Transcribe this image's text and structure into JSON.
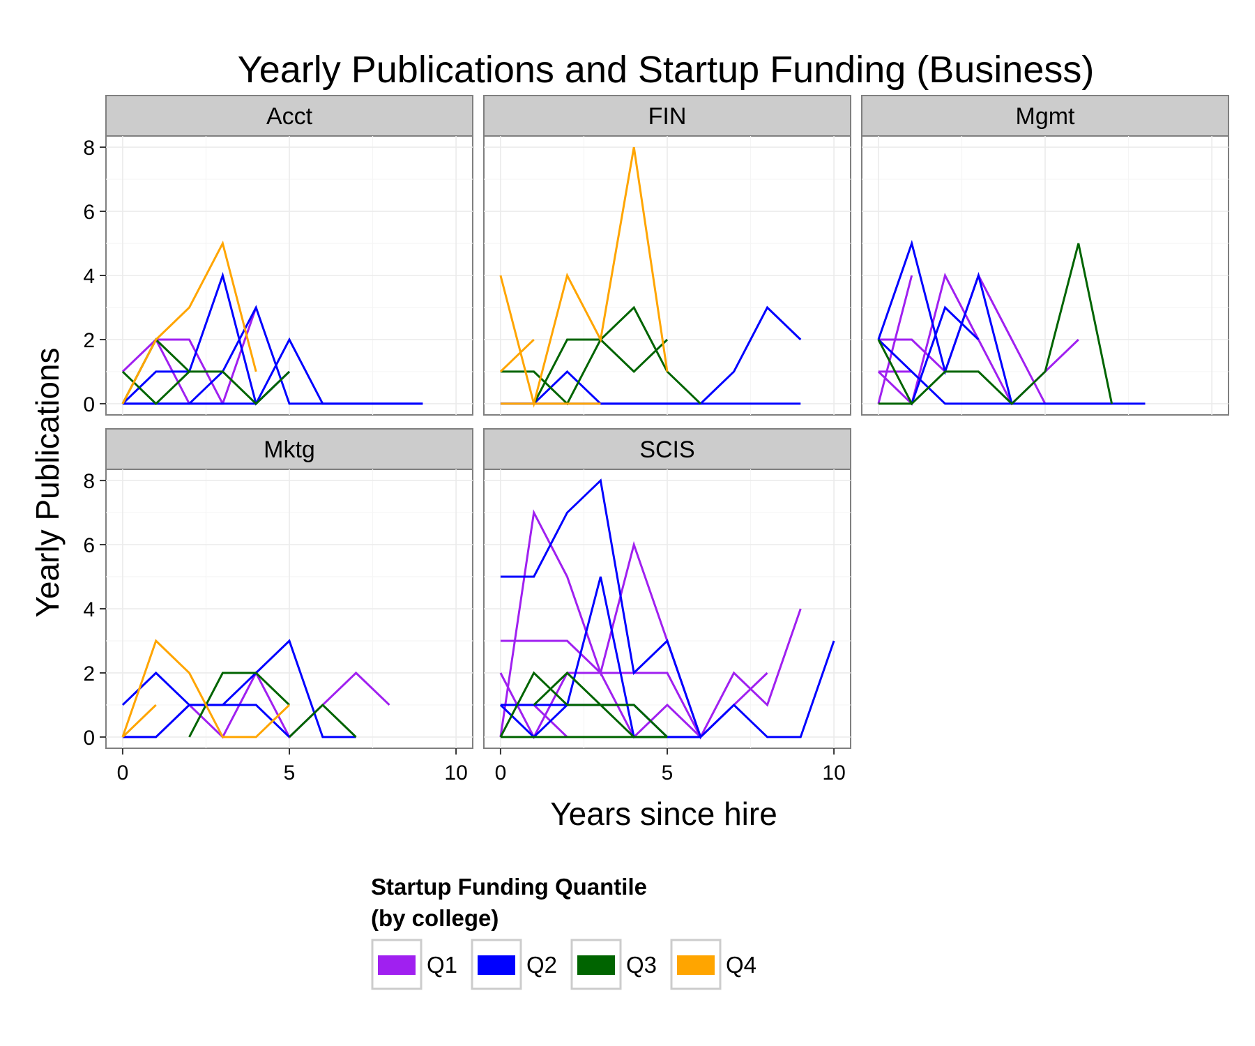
{
  "chart_data": {
    "type": "line",
    "title": "Yearly Publications and Startup Funding (Business)",
    "xlabel": "Years since hire",
    "ylabel": "Yearly Publications",
    "xlim": [
      -0.5,
      10.5
    ],
    "ylim": [
      -0.35,
      8.35
    ],
    "x_ticks": [
      "0",
      "5",
      "10"
    ],
    "y_ticks": [
      "0",
      "2",
      "4",
      "6",
      "8"
    ],
    "grid": true,
    "legend": {
      "title_line1": "Startup Funding Quantile",
      "title_line2": "(by college)",
      "placement": "bottom",
      "entries": [
        {
          "label": "Q1",
          "color": "#a020f0"
        },
        {
          "label": "Q2",
          "color": "#0000ff"
        },
        {
          "label": "Q3",
          "color": "#006400"
        },
        {
          "label": "Q4",
          "color": "#ffa500"
        }
      ]
    },
    "panels": [
      {
        "name": "Acct",
        "lines": [
          {
            "q": "Q1",
            "x": [
              0,
              1,
              2,
              3,
              4
            ],
            "y": [
              1,
              2,
              0,
              0,
              3
            ]
          },
          {
            "q": "Q1",
            "x": [
              1,
              2,
              3
            ],
            "y": [
              2,
              2,
              0
            ]
          },
          {
            "q": "Q2",
            "x": [
              0,
              1,
              2,
              3,
              4,
              5
            ],
            "y": [
              0,
              1,
              1,
              4,
              0,
              1
            ]
          },
          {
            "q": "Q2",
            "x": [
              0,
              1,
              2,
              3,
              4,
              5,
              6,
              7,
              8,
              9
            ],
            "y": [
              0,
              0,
              0,
              1,
              3,
              0,
              0,
              0,
              0,
              0
            ]
          },
          {
            "q": "Q2",
            "x": [
              0,
              1,
              2,
              3,
              4,
              5,
              6,
              7,
              8,
              9
            ],
            "y": [
              0,
              0,
              0,
              0,
              0,
              2,
              0,
              0,
              0,
              0
            ]
          },
          {
            "q": "Q3",
            "x": [
              0,
              1,
              2,
              3,
              4,
              5
            ],
            "y": [
              1,
              0,
              1,
              1,
              0,
              1
            ]
          },
          {
            "q": "Q3",
            "x": [
              0,
              1,
              2
            ],
            "y": [
              0,
              2,
              1
            ]
          },
          {
            "q": "Q4",
            "x": [
              0,
              1,
              2,
              3,
              4
            ],
            "y": [
              0,
              2,
              3,
              5,
              1
            ]
          }
        ]
      },
      {
        "name": "FIN",
        "lines": [
          {
            "q": "Q2",
            "x": [
              0,
              1,
              2,
              3,
              4,
              5,
              6,
              7,
              8,
              9
            ],
            "y": [
              0,
              0,
              1,
              0,
              0,
              0,
              0,
              1,
              3,
              2
            ]
          },
          {
            "q": "Q2",
            "x": [
              0,
              1,
              2,
              3,
              4,
              5,
              6,
              7,
              8,
              9
            ],
            "y": [
              0,
              0,
              0,
              0,
              0,
              0,
              0,
              0,
              0,
              0
            ]
          },
          {
            "q": "Q3",
            "x": [
              0,
              1,
              2,
              3,
              4,
              5,
              6
            ],
            "y": [
              1,
              1,
              0,
              2,
              3,
              1,
              0
            ]
          },
          {
            "q": "Q3",
            "x": [
              1,
              2,
              3,
              4,
              5
            ],
            "y": [
              0,
              2,
              2,
              1,
              2
            ]
          },
          {
            "q": "Q4",
            "x": [
              0,
              1,
              2,
              3,
              4,
              5
            ],
            "y": [
              4,
              0,
              4,
              2,
              8,
              1
            ]
          },
          {
            "q": "Q4",
            "x": [
              0,
              1,
              2,
              3
            ],
            "y": [
              0,
              0,
              0,
              0
            ]
          },
          {
            "q": "Q4",
            "x": [
              0,
              1
            ],
            "y": [
              1,
              2
            ]
          }
        ]
      },
      {
        "name": "Mgmt",
        "lines": [
          {
            "q": "Q1",
            "x": [
              0,
              1,
              2,
              3,
              4,
              5,
              6,
              7
            ],
            "y": [
              2,
              2,
              1,
              4,
              2,
              0,
              0,
              0
            ]
          },
          {
            "q": "Q1",
            "x": [
              0,
              1,
              2,
              3,
              4,
              5,
              6
            ],
            "y": [
              1,
              0,
              4,
              2,
              0,
              1,
              2
            ]
          },
          {
            "q": "Q1",
            "x": [
              0,
              1
            ],
            "y": [
              0,
              4
            ]
          },
          {
            "q": "Q1",
            "x": [
              0,
              1
            ],
            "y": [
              1,
              1
            ]
          },
          {
            "q": "Q2",
            "x": [
              0,
              1,
              2,
              3,
              4
            ],
            "y": [
              2,
              5,
              1,
              4,
              0
            ]
          },
          {
            "q": "Q2",
            "x": [
              0,
              1,
              2,
              3,
              4,
              5,
              6,
              7,
              8
            ],
            "y": [
              2,
              1,
              0,
              0,
              0,
              0,
              0,
              0,
              0
            ]
          },
          {
            "q": "Q2",
            "x": [
              1,
              2,
              3
            ],
            "y": [
              0,
              3,
              2
            ]
          },
          {
            "q": "Q3",
            "x": [
              0,
              1,
              2,
              3,
              4,
              5,
              6,
              7
            ],
            "y": [
              2,
              0,
              1,
              1,
              0,
              1,
              5,
              0
            ]
          },
          {
            "q": "Q3",
            "x": [
              0,
              1
            ],
            "y": [
              0,
              0
            ]
          }
        ]
      },
      {
        "name": "Mktg",
        "lines": [
          {
            "q": "Q1",
            "x": [
              0,
              1,
              2,
              3,
              4,
              5,
              6,
              7,
              8
            ],
            "y": [
              0,
              0,
              1,
              0,
              2,
              0,
              1,
              2,
              1
            ]
          },
          {
            "q": "Q2",
            "x": [
              0,
              1,
              2,
              3,
              4,
              5,
              6,
              7
            ],
            "y": [
              1,
              2,
              1,
              1,
              2,
              3,
              0,
              0
            ]
          },
          {
            "q": "Q2",
            "x": [
              0,
              1,
              2,
              3,
              4,
              5
            ],
            "y": [
              0,
              0,
              1,
              1,
              1,
              0
            ]
          },
          {
            "q": "Q3",
            "x": [
              2,
              3,
              4,
              5
            ],
            "y": [
              0,
              2,
              2,
              1
            ]
          },
          {
            "q": "Q3",
            "x": [
              5,
              6,
              7
            ],
            "y": [
              0,
              1,
              0
            ]
          },
          {
            "q": "Q4",
            "x": [
              0,
              1,
              2,
              3,
              4,
              5
            ],
            "y": [
              0,
              3,
              2,
              0,
              0,
              1
            ]
          },
          {
            "q": "Q4",
            "x": [
              0,
              1
            ],
            "y": [
              0,
              1
            ]
          }
        ]
      },
      {
        "name": "SCIS",
        "lines": [
          {
            "q": "Q1",
            "x": [
              0,
              1,
              2,
              3,
              4,
              5,
              6,
              7,
              8,
              9
            ],
            "y": [
              0,
              7,
              5,
              2,
              6,
              3,
              0,
              2,
              1,
              4
            ]
          },
          {
            "q": "Q1",
            "x": [
              0,
              1,
              2,
              3,
              4,
              5,
              6,
              7,
              8
            ],
            "y": [
              3,
              3,
              3,
              2,
              2,
              2,
              0,
              1,
              2
            ]
          },
          {
            "q": "Q1",
            "x": [
              0,
              1,
              2,
              3,
              4,
              5,
              6
            ],
            "y": [
              2,
              0,
              2,
              2,
              0,
              1,
              0
            ]
          },
          {
            "q": "Q1",
            "x": [
              0,
              1,
              2
            ],
            "y": [
              1,
              1,
              0
            ]
          },
          {
            "q": "Q2",
            "x": [
              0,
              1,
              2,
              3,
              4,
              5,
              6,
              7,
              8,
              9,
              10
            ],
            "y": [
              5,
              5,
              7,
              8,
              2,
              3,
              0,
              1,
              0,
              0,
              3
            ]
          },
          {
            "q": "Q2",
            "x": [
              0,
              1,
              2,
              3,
              4,
              5,
              6
            ],
            "y": [
              1,
              1,
              1,
              5,
              0,
              0,
              0
            ]
          },
          {
            "q": "Q2",
            "x": [
              0,
              1,
              2,
              3,
              4,
              5,
              6
            ],
            "y": [
              1,
              0,
              1,
              1,
              1,
              0,
              0
            ]
          },
          {
            "q": "Q3",
            "x": [
              0,
              1,
              2,
              3,
              4,
              5
            ],
            "y": [
              0,
              2,
              1,
              1,
              1,
              0
            ]
          },
          {
            "q": "Q3",
            "x": [
              1,
              2,
              3,
              4,
              5
            ],
            "y": [
              1,
              2,
              1,
              0,
              0
            ]
          },
          {
            "q": "Q3",
            "x": [
              0,
              1,
              2,
              3,
              4,
              5
            ],
            "y": [
              0,
              0,
              0,
              0,
              0,
              0
            ]
          }
        ]
      }
    ]
  }
}
